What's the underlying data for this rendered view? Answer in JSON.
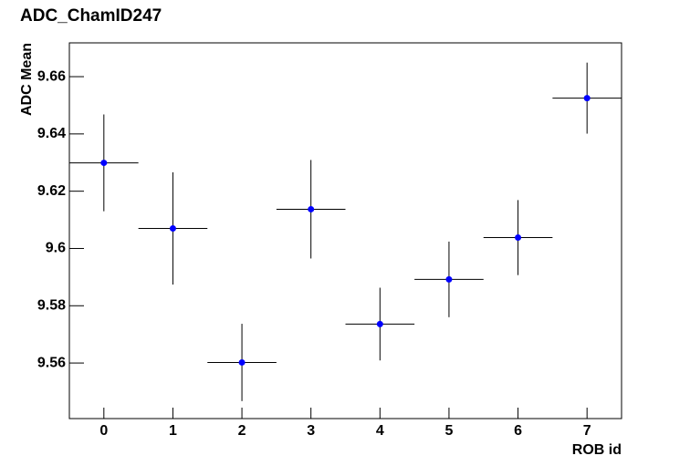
{
  "chart_data": {
    "type": "errorbar",
    "title": "ADC_ChamID247",
    "x_label": "ROB id",
    "y_label": "ADC Mean",
    "x": [
      0,
      1,
      2,
      3,
      4,
      5,
      6,
      7
    ],
    "values": [
      9.6299,
      9.607,
      9.5602,
      9.6137,
      9.5736,
      9.5892,
      9.6038,
      9.6525
    ],
    "yerr": [
      0.0169,
      0.0196,
      0.0135,
      0.0172,
      0.0127,
      0.0132,
      0.0131,
      0.0124
    ],
    "xerr": [
      0.5,
      0.5,
      0.5,
      0.5,
      0.5,
      0.5,
      0.5,
      0.5
    ],
    "color": "#0000ff",
    "xlim": [
      -0.5,
      7.5
    ],
    "xticks": [
      0,
      1,
      2,
      3,
      4,
      5,
      6,
      7
    ],
    "ylim": [
      9.5406,
      9.6718
    ],
    "yticks": [
      9.56,
      9.58,
      9.6,
      9.62,
      9.64,
      9.66
    ]
  }
}
